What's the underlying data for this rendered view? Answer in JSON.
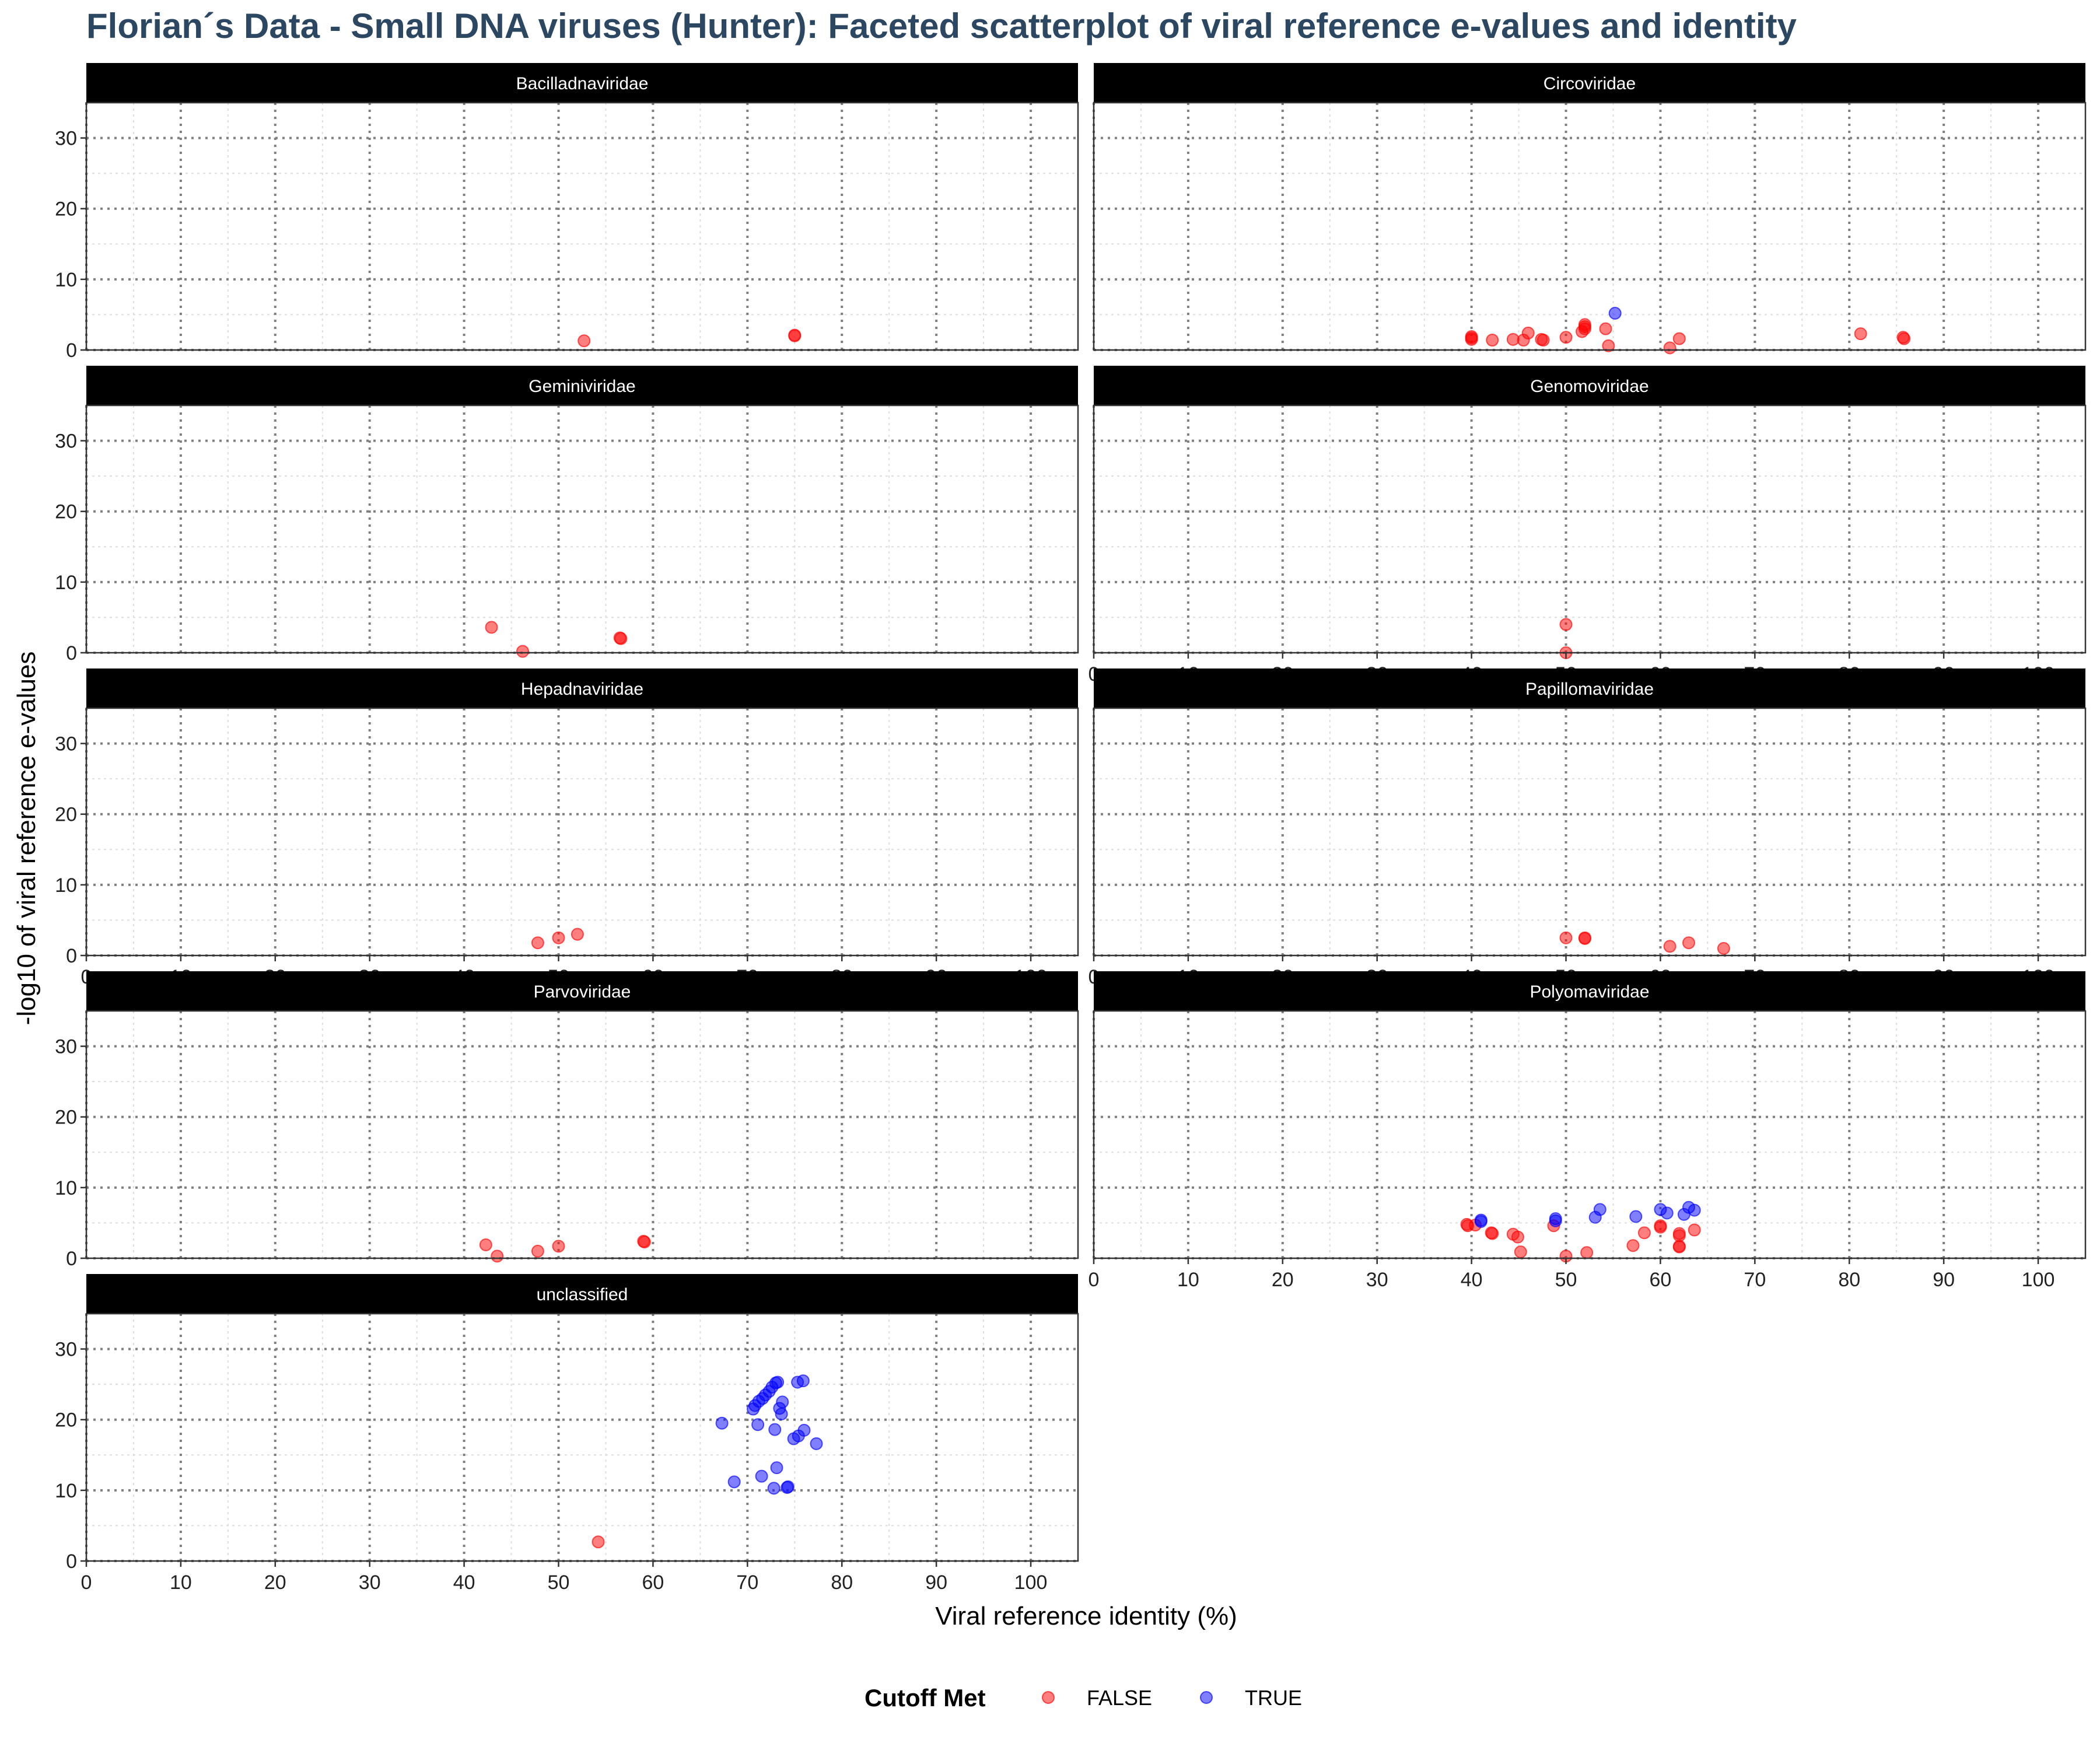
{
  "chart_data": {
    "type": "scatter",
    "title": "Florian´s Data - Small DNA viruses (Hunter): Faceted scatterplot of viral reference e-values and identity",
    "xlabel": "Viral reference identity (%)",
    "ylabel": "-log10 of viral reference e-values",
    "xlim": [
      0,
      105
    ],
    "ylim": [
      0,
      35
    ],
    "x_ticks": [
      "0",
      "10",
      "20",
      "30",
      "40",
      "50",
      "60",
      "70",
      "80",
      "90",
      "100"
    ],
    "y_ticks": [
      "0",
      "10",
      "20",
      "30"
    ],
    "grid": true,
    "legend": {
      "title": "Cutoff Met",
      "placement": "bottom",
      "entries": [
        {
          "label": "FALSE",
          "color": "#ff0000"
        },
        {
          "label": "TRUE",
          "color": "#0000ff"
        }
      ]
    },
    "facets": [
      {
        "name": "Bacilladnaviridae",
        "points": [
          [
            52.7,
            1.3,
            false
          ],
          [
            75.0,
            2.1,
            false
          ],
          [
            75.0,
            2.0,
            false
          ]
        ]
      },
      {
        "name": "Circoviridae",
        "points": [
          [
            40.0,
            1.9,
            false
          ],
          [
            40.0,
            1.5,
            false
          ],
          [
            40.0,
            1.7,
            false
          ],
          [
            42.2,
            1.4,
            false
          ],
          [
            44.4,
            1.5,
            false
          ],
          [
            45.5,
            1.4,
            false
          ],
          [
            46.0,
            2.4,
            false
          ],
          [
            47.4,
            1.5,
            false
          ],
          [
            47.6,
            1.4,
            false
          ],
          [
            50.0,
            1.8,
            false
          ],
          [
            51.7,
            2.6,
            false
          ],
          [
            52.0,
            3.3,
            false
          ],
          [
            52.0,
            3.6,
            false
          ],
          [
            52.0,
            3.0,
            false
          ],
          [
            54.2,
            3.0,
            false
          ],
          [
            54.5,
            0.6,
            false
          ],
          [
            61.0,
            0.3,
            false
          ],
          [
            62.0,
            1.6,
            false
          ],
          [
            81.2,
            2.3,
            false
          ],
          [
            85.7,
            1.8,
            false
          ],
          [
            85.8,
            1.6,
            false
          ],
          [
            55.2,
            5.2,
            true
          ]
        ]
      },
      {
        "name": "Geminiviridae",
        "points": [
          [
            42.9,
            3.6,
            false
          ],
          [
            46.2,
            0.2,
            false
          ],
          [
            56.5,
            2.1,
            false
          ],
          [
            56.6,
            2.0,
            false
          ]
        ]
      },
      {
        "name": "Genomoviridae",
        "points": [
          [
            50.0,
            4.0,
            false
          ],
          [
            50.0,
            0.0,
            false
          ]
        ]
      },
      {
        "name": "Hepadnaviridae",
        "points": [
          [
            47.8,
            1.8,
            false
          ],
          [
            50.0,
            2.5,
            false
          ],
          [
            52.0,
            3.0,
            false
          ]
        ]
      },
      {
        "name": "Papillomaviridae",
        "points": [
          [
            50.0,
            2.5,
            false
          ],
          [
            52.0,
            2.5,
            false
          ],
          [
            52.0,
            2.4,
            false
          ],
          [
            61.0,
            1.3,
            false
          ],
          [
            63.0,
            1.8,
            false
          ],
          [
            66.7,
            1.0,
            false
          ]
        ]
      },
      {
        "name": "Parvoviridae",
        "points": [
          [
            42.3,
            1.9,
            false
          ],
          [
            43.5,
            0.3,
            false
          ],
          [
            47.8,
            1.0,
            false
          ],
          [
            50.0,
            1.7,
            false
          ],
          [
            59.0,
            2.4,
            false
          ],
          [
            59.1,
            2.3,
            false
          ]
        ]
      },
      {
        "name": "Polyomaviridae",
        "points": [
          [
            39.5,
            4.8,
            false
          ],
          [
            39.6,
            4.6,
            false
          ],
          [
            40.4,
            4.7,
            false
          ],
          [
            42.1,
            3.6,
            false
          ],
          [
            42.2,
            3.5,
            false
          ],
          [
            44.4,
            3.4,
            false
          ],
          [
            44.9,
            3.0,
            false
          ],
          [
            45.2,
            0.9,
            false
          ],
          [
            48.7,
            4.6,
            false
          ],
          [
            50.0,
            0.3,
            false
          ],
          [
            52.2,
            0.8,
            false
          ],
          [
            57.1,
            1.8,
            false
          ],
          [
            58.3,
            3.6,
            false
          ],
          [
            60.0,
            4.4,
            false
          ],
          [
            60.0,
            4.6,
            false
          ],
          [
            62.0,
            3.5,
            false
          ],
          [
            62.0,
            3.2,
            false
          ],
          [
            62.0,
            1.7,
            false
          ],
          [
            62.0,
            1.6,
            false
          ],
          [
            63.6,
            4.0,
            false
          ],
          [
            41.0,
            5.2,
            true
          ],
          [
            41.0,
            5.4,
            true
          ],
          [
            48.9,
            5.3,
            true
          ],
          [
            48.9,
            5.6,
            true
          ],
          [
            53.1,
            5.8,
            true
          ],
          [
            53.6,
            6.9,
            true
          ],
          [
            57.4,
            5.9,
            true
          ],
          [
            60.0,
            6.9,
            true
          ],
          [
            60.7,
            6.4,
            true
          ],
          [
            62.5,
            6.2,
            true
          ],
          [
            63.0,
            7.2,
            true
          ],
          [
            63.6,
            6.8,
            true
          ]
        ]
      },
      {
        "name": "unclassified",
        "points": [
          [
            54.2,
            2.7,
            false
          ],
          [
            67.3,
            19.5,
            true
          ],
          [
            68.6,
            11.2,
            true
          ],
          [
            70.6,
            21.5,
            true
          ],
          [
            70.8,
            22.0,
            true
          ],
          [
            71.1,
            19.3,
            true
          ],
          [
            71.2,
            22.6,
            true
          ],
          [
            71.5,
            12.0,
            true
          ],
          [
            71.6,
            23.0,
            true
          ],
          [
            71.9,
            23.5,
            true
          ],
          [
            72.3,
            24.0,
            true
          ],
          [
            72.6,
            24.6,
            true
          ],
          [
            72.8,
            10.3,
            true
          ],
          [
            72.9,
            18.6,
            true
          ],
          [
            73.0,
            25.2,
            true
          ],
          [
            73.1,
            13.2,
            true
          ],
          [
            73.2,
            25.3,
            true
          ],
          [
            73.4,
            21.6,
            true
          ],
          [
            73.6,
            20.8,
            true
          ],
          [
            73.7,
            22.5,
            true
          ],
          [
            74.2,
            10.4,
            true
          ],
          [
            74.3,
            10.5,
            true
          ],
          [
            74.9,
            17.3,
            true
          ],
          [
            75.3,
            25.3,
            true
          ],
          [
            75.4,
            17.7,
            true
          ],
          [
            75.9,
            25.5,
            true
          ],
          [
            76.0,
            18.5,
            true
          ],
          [
            77.3,
            16.6,
            true
          ]
        ]
      }
    ]
  }
}
